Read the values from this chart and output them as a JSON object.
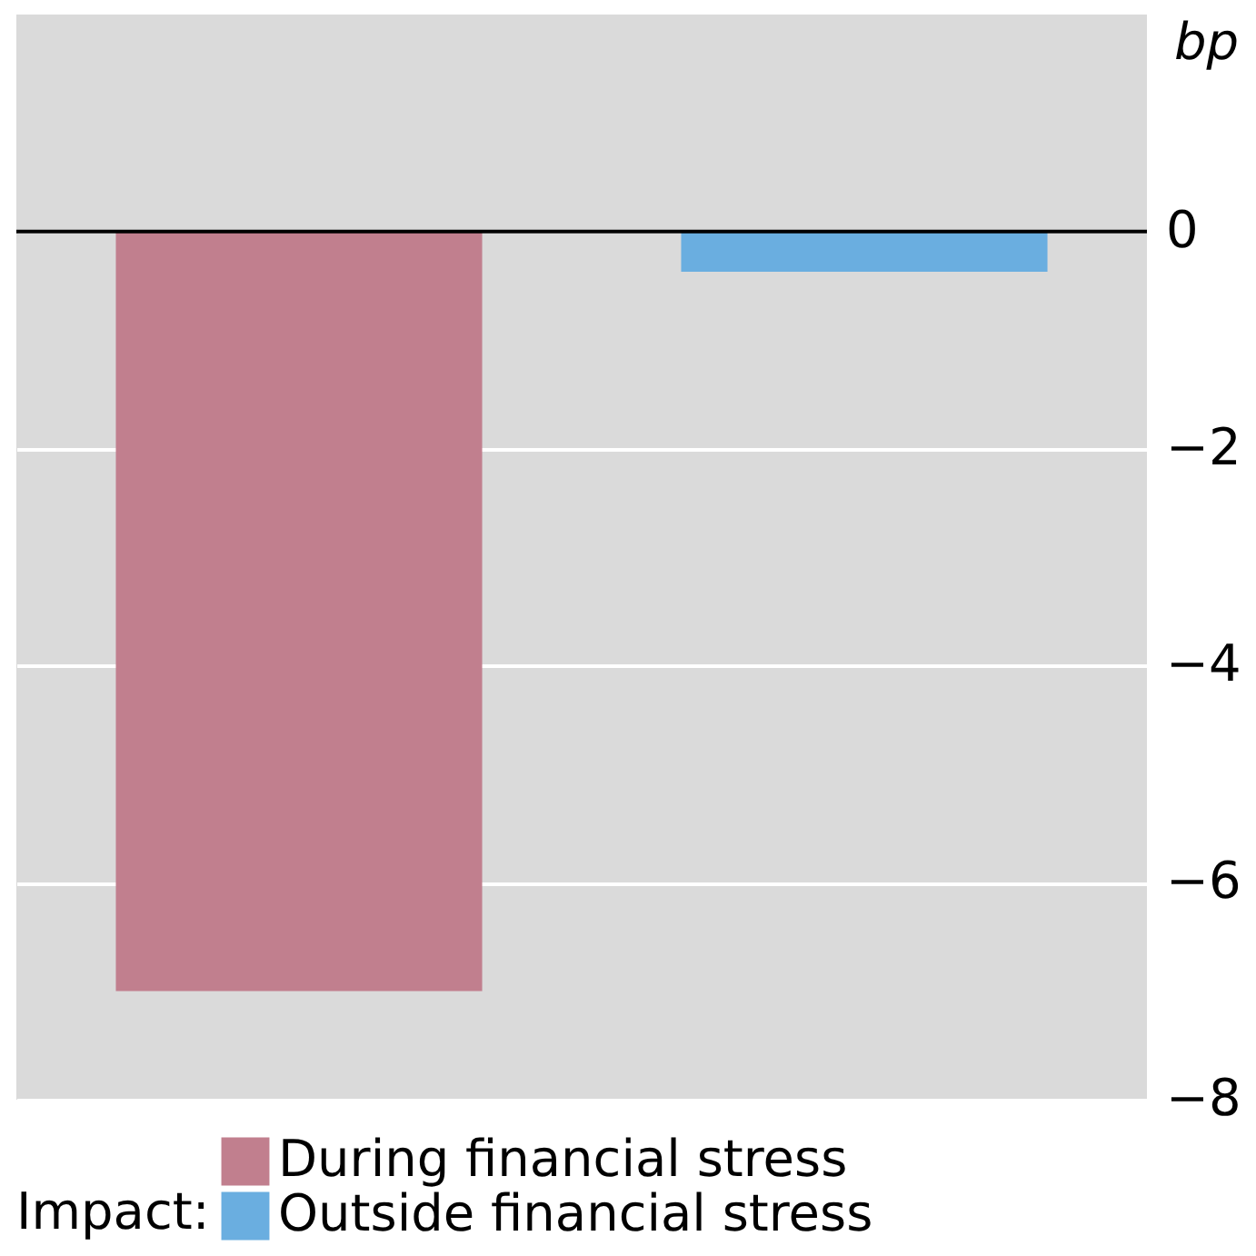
{
  "chart_data": {
    "type": "bar",
    "ylabel": "bp",
    "legend_title": "Impact:",
    "categories": [
      null,
      null
    ],
    "series": [
      {
        "name": "During financial stress",
        "color": "#c17f8e",
        "values": [
          -7.0,
          null
        ]
      },
      {
        "name": "Outside financial stress",
        "color": "#6aaee0",
        "values": [
          null,
          -0.37
        ]
      }
    ],
    "ylim": [
      -8,
      2
    ],
    "yticks": [
      0,
      -2,
      -4,
      -6,
      -8
    ],
    "grid": "y",
    "legend": "bottom",
    "ref_lines": [
      {
        "axis": "y",
        "value": 0,
        "color": "#000000"
      }
    ]
  }
}
